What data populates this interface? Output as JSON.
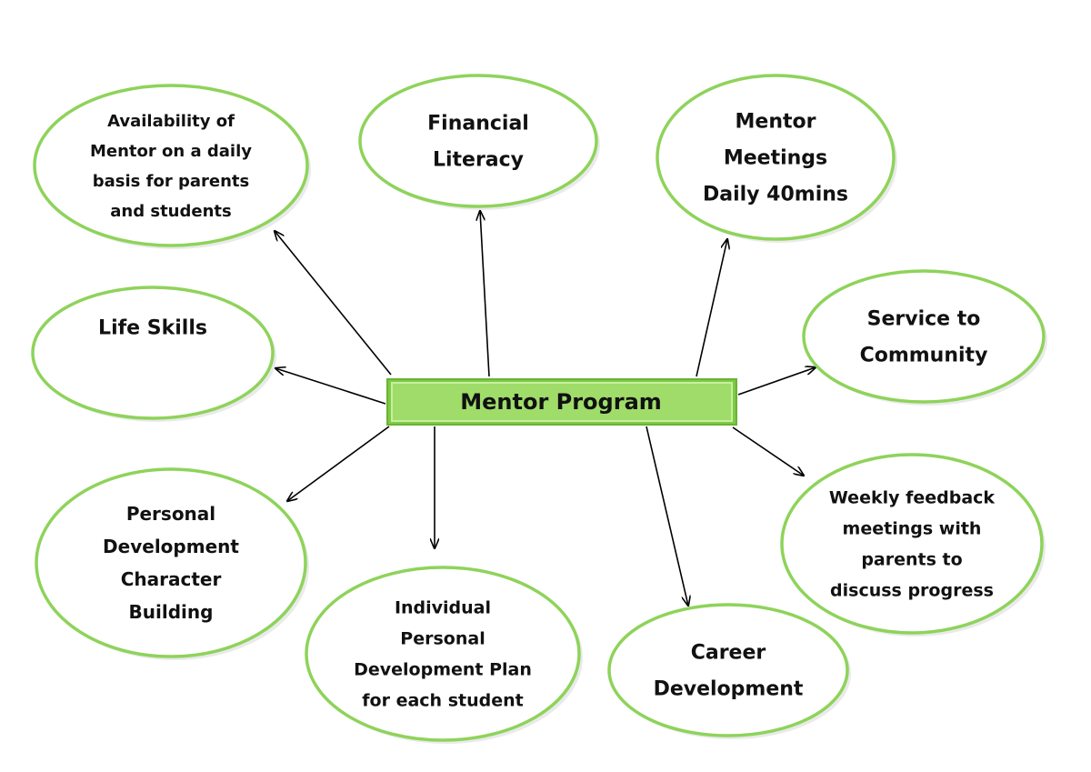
{
  "diagram": {
    "center": {
      "label": "Mentor Program"
    },
    "nodes": [
      {
        "id": "availability",
        "lines": [
          "Availability of",
          "Mentor on a daily",
          "basis for parents",
          "and students"
        ]
      },
      {
        "id": "financial-literacy",
        "lines": [
          "Financial",
          "Literacy"
        ]
      },
      {
        "id": "mentor-meetings",
        "lines": [
          "Mentor",
          "Meetings",
          "Daily 40mins"
        ]
      },
      {
        "id": "service-to-community",
        "lines": [
          "Service to",
          "Community"
        ]
      },
      {
        "id": "life-skills",
        "lines": [
          "Life Skills"
        ]
      },
      {
        "id": "weekly-feedback",
        "lines": [
          "Weekly feedback",
          "meetings with",
          "parents to",
          "discuss progress"
        ]
      },
      {
        "id": "personal-development",
        "lines": [
          "Personal",
          "Development",
          "Character",
          "Building"
        ]
      },
      {
        "id": "individual-plan",
        "lines": [
          "Individual",
          "Personal",
          "Development Plan",
          "for each student"
        ]
      },
      {
        "id": "career-development",
        "lines": [
          "Career",
          "Development"
        ]
      }
    ],
    "colors": {
      "ellipse_border": "#8ed35a",
      "center_fill": "#9fdc6a",
      "arrow": "#000000"
    }
  }
}
